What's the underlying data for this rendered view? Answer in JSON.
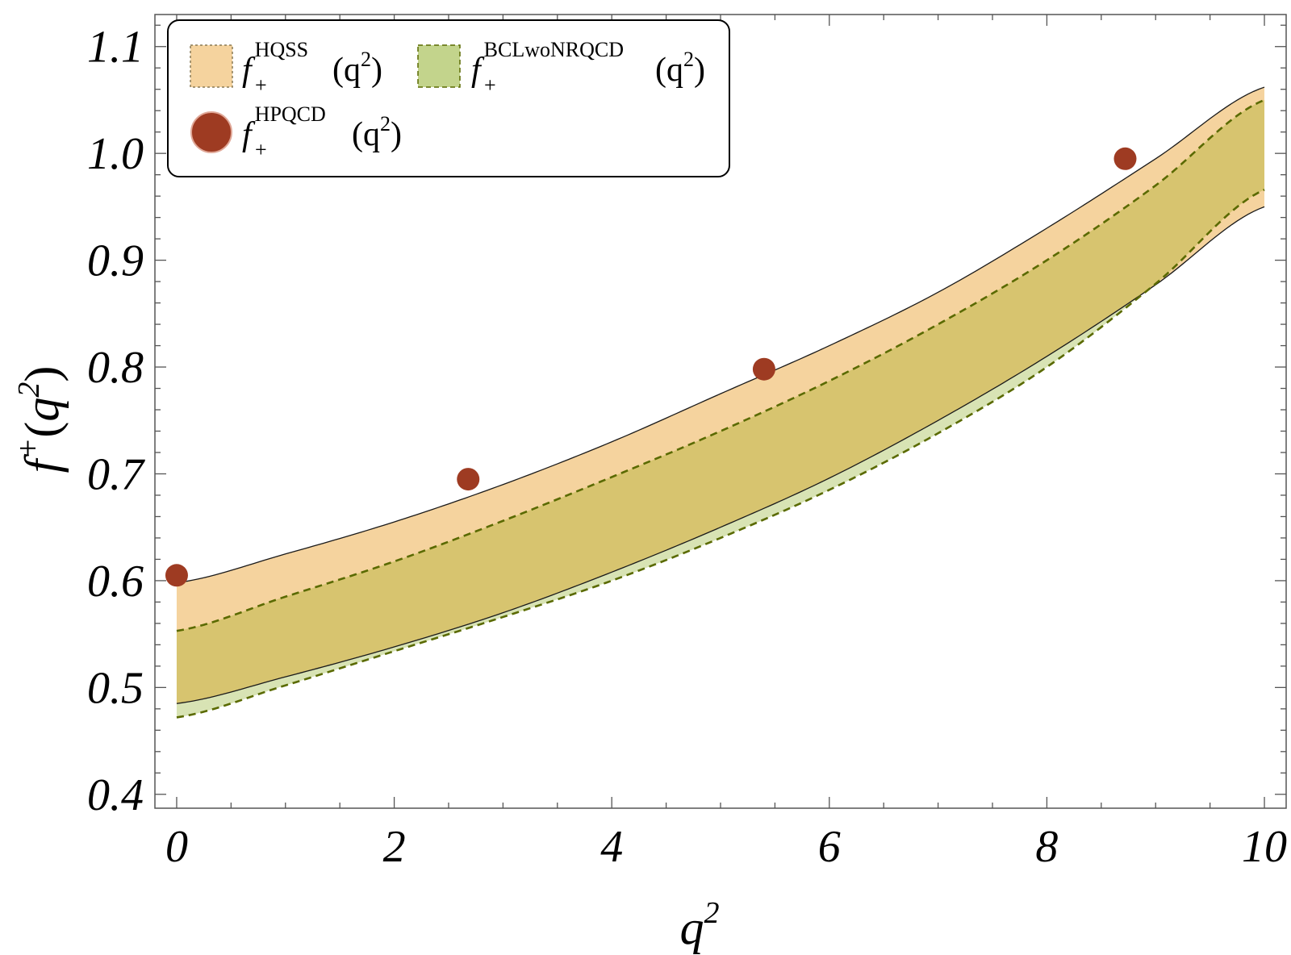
{
  "chart_data": {
    "type": "line",
    "title": "",
    "xlabel": {
      "base": "q",
      "sup": "2"
    },
    "ylabel": {
      "pre": "f",
      "pre_sup": "+",
      "open": "(",
      "base": "q",
      "sup": "2",
      "close": ")"
    },
    "xlim": [
      -0.2,
      10.2
    ],
    "ylim": [
      0.387,
      1.13
    ],
    "x_ticks": [
      0,
      2,
      4,
      6,
      8,
      10
    ],
    "x_tick_labels": [
      "0",
      "2",
      "4",
      "6",
      "8",
      "10"
    ],
    "y_ticks": [
      0.4,
      0.5,
      0.6,
      0.7,
      0.8,
      0.9,
      1.0,
      1.1
    ],
    "y_tick_labels": [
      "0.4",
      "0.5",
      "0.6",
      "0.7",
      "0.8",
      "0.9",
      "1.0",
      "1.1"
    ],
    "grid": false,
    "legend_position": "top-left",
    "legend": [
      {
        "base": "f",
        "sub": "+",
        "sup": "HQSS",
        "arg": "(q",
        "arg_sup": "2",
        "close": ")",
        "swatch": "band-orange"
      },
      {
        "base": "f",
        "sub": "+",
        "sup": "BCLwoNRQCD",
        "arg": "(q",
        "arg_sup": "2",
        "close": ")",
        "swatch": "band-green"
      },
      {
        "base": "f",
        "sub": "+",
        "sup": "HPQCD",
        "arg": "(q",
        "arg_sup": "2",
        "close": ")",
        "swatch": "point"
      }
    ],
    "bands": [
      {
        "name": "f+HQSS(q2)",
        "x": [
          0,
          1,
          2,
          3,
          4,
          5,
          6,
          7,
          8,
          9,
          10
        ],
        "upper": [
          0.598,
          0.625,
          0.655,
          0.69,
          0.73,
          0.775,
          0.82,
          0.87,
          0.93,
          0.995,
          1.062
        ],
        "lower": [
          0.485,
          0.51,
          0.538,
          0.57,
          0.608,
          0.65,
          0.696,
          0.75,
          0.81,
          0.877,
          0.95
        ],
        "fill": "#f5d39e",
        "edge": "#1a1a1a"
      },
      {
        "name": "f+BCLwoNRQCD(q2)",
        "x": [
          0,
          1,
          2,
          3,
          4,
          5,
          6,
          7,
          8,
          9,
          10
        ],
        "upper": [
          0.553,
          0.585,
          0.618,
          0.656,
          0.697,
          0.74,
          0.787,
          0.84,
          0.9,
          0.97,
          1.05
        ],
        "lower": [
          0.472,
          0.502,
          0.534,
          0.566,
          0.6,
          0.64,
          0.685,
          0.738,
          0.8,
          0.878,
          0.966
        ],
        "fill": "#c3d48c",
        "overlap_fill": "#d7c46f",
        "edge": "#5a6a00"
      }
    ],
    "points": {
      "name": "f+HPQCD(q2)",
      "x": [
        0,
        2.68,
        5.4,
        8.72
      ],
      "y": [
        0.605,
        0.695,
        0.798,
        0.995
      ],
      "color": "#9e3b22"
    }
  }
}
